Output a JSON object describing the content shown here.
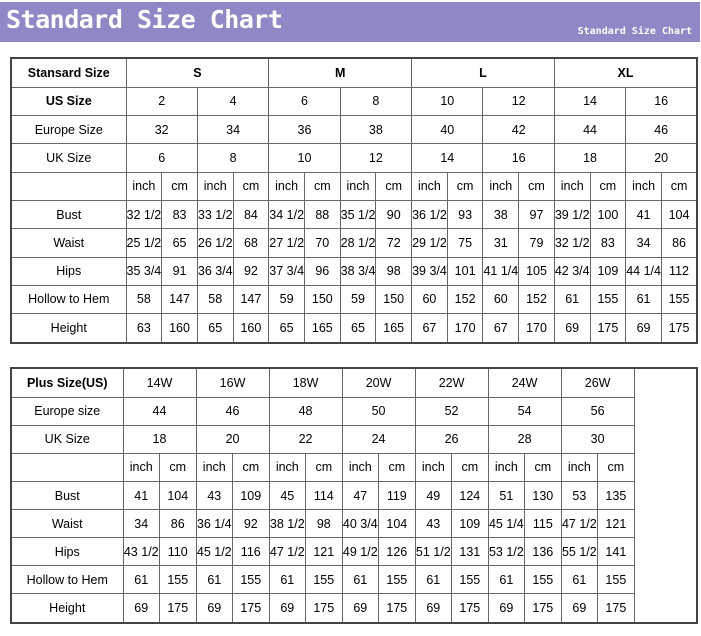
{
  "header": {
    "title": "Standard Size Chart",
    "subtitle": "Standard Size Chart"
  },
  "standard_table": {
    "rows": [
      {
        "label": "Stansard Size",
        "cells": [
          "S",
          "M",
          "L",
          "XL"
        ]
      },
      {
        "label": "US Size",
        "cells": [
          2,
          4,
          6,
          8,
          10,
          12,
          14,
          16
        ]
      },
      {
        "label": "Europe Size",
        "cells": [
          32,
          34,
          36,
          38,
          40,
          42,
          44,
          46
        ]
      },
      {
        "label": "UK Size",
        "cells": [
          6,
          8,
          10,
          12,
          14,
          16,
          18,
          20
        ]
      }
    ],
    "units": [
      "inch",
      "cm"
    ],
    "measurements": [
      {
        "label": "Bust",
        "cells": [
          "32 1/2",
          83,
          "33 1/2",
          84,
          "34 1/2",
          88,
          "35 1/2",
          90,
          "36 1/2",
          93,
          38,
          97,
          "39 1/2",
          100,
          41,
          104
        ]
      },
      {
        "label": "Waist",
        "cells": [
          "25 1/2",
          65,
          "26 1/2",
          68,
          "27 1/2",
          70,
          "28 1/2",
          72,
          "29 1/2",
          75,
          31,
          79,
          "32 1/2",
          83,
          34,
          86
        ]
      },
      {
        "label": "Hips",
        "cells": [
          "35 3/4",
          91,
          "36 3/4",
          92,
          "37 3/4",
          96,
          "38 3/4",
          98,
          "39 3/4",
          101,
          "41 1/4",
          105,
          "42 3/4",
          109,
          "44 1/4",
          112
        ]
      },
      {
        "label": "Hollow to Hem",
        "cells": [
          58,
          147,
          58,
          147,
          59,
          150,
          59,
          150,
          60,
          152,
          60,
          152,
          61,
          155,
          61,
          155
        ]
      },
      {
        "label": "Height",
        "cells": [
          63,
          160,
          65,
          160,
          65,
          165,
          65,
          165,
          67,
          170,
          67,
          170,
          69,
          175,
          69,
          175
        ]
      }
    ]
  },
  "plus_table": {
    "rows": [
      {
        "label": "Plus Size(US)",
        "cells": [
          "14W",
          "16W",
          "18W",
          "20W",
          "22W",
          "24W",
          "26W"
        ]
      },
      {
        "label": "Europe size",
        "cells": [
          44,
          46,
          48,
          50,
          52,
          54,
          56
        ]
      },
      {
        "label": "UK Size",
        "cells": [
          18,
          20,
          22,
          24,
          26,
          28,
          30
        ]
      }
    ],
    "units": [
      "inch",
      "cm"
    ],
    "measurements": [
      {
        "label": "Bust",
        "cells": [
          41,
          104,
          43,
          109,
          45,
          114,
          47,
          119,
          49,
          124,
          51,
          130,
          53,
          135
        ]
      },
      {
        "label": "Waist",
        "cells": [
          34,
          86,
          "36 1/4",
          92,
          "38 1/2",
          98,
          "40 3/4",
          104,
          43,
          109,
          "45 1/4",
          115,
          "47 1/2",
          121
        ]
      },
      {
        "label": "Hips",
        "cells": [
          "43 1/2",
          110,
          "45 1/2",
          116,
          "47 1/2",
          121,
          "49 1/2",
          126,
          "51 1/2",
          131,
          "53 1/2",
          136,
          "55 1/2",
          141
        ]
      },
      {
        "label": "Hollow to Hem",
        "cells": [
          61,
          155,
          61,
          155,
          61,
          155,
          61,
          155,
          61,
          155,
          61,
          155,
          61,
          155
        ]
      },
      {
        "label": "Height",
        "cells": [
          69,
          175,
          69,
          175,
          69,
          175,
          69,
          175,
          69,
          175,
          69,
          175,
          69,
          175
        ]
      }
    ]
  }
}
